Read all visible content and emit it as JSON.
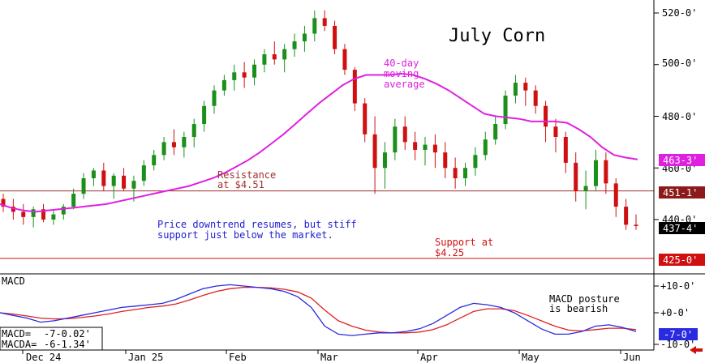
{
  "chart_data": [
    {
      "type": "candlestick",
      "title": "July Corn",
      "x_tick_labels": [
        "Dec 24",
        "Jan 25",
        "Feb",
        "Mar",
        "Apr",
        "May",
        "Jun"
      ],
      "y_tick_labels": [
        "520-0'",
        "500-0'",
        "480-0'",
        "460-0'",
        "440-0'"
      ],
      "ylim": [
        420,
        525
      ],
      "price_labels": {
        "moving_average_value": "463-3'",
        "resistance_value": "451-1'",
        "last_price_value": "437-4'",
        "support_value": "425-0'"
      },
      "levels": {
        "resistance": 451.1,
        "support": 425
      },
      "annotations": {
        "resistance": [
          "Resistance",
          "at $4.51"
        ],
        "support": [
          "Support at",
          "$4.25"
        ],
        "moving_average": [
          "40-day",
          "moving",
          "average"
        ],
        "comment": [
          "Price downtrend resumes, but stiff",
          "support just below the market."
        ]
      },
      "series": [
        {
          "name": "40-day moving average",
          "type": "line",
          "values": [
            446,
            444.5,
            443.5,
            443,
            443.5,
            444,
            444.5,
            445,
            445.5,
            446,
            447,
            448,
            449,
            450,
            451,
            452,
            453,
            454.5,
            456,
            458,
            460.5,
            463,
            466,
            469.5,
            473,
            477,
            481,
            485,
            488.5,
            492,
            494.5,
            496,
            496,
            496,
            496.5,
            496,
            494.5,
            492.5,
            490,
            487,
            484,
            481,
            480,
            479.5,
            479,
            478,
            478,
            478,
            477.5,
            475,
            472,
            468,
            465,
            464,
            463.3
          ]
        },
        {
          "name": "close",
          "type": "ohlc",
          "values": [
            [
              448,
              450,
              443,
              445
            ],
            [
              445,
              448,
              440,
              443
            ],
            [
              443,
              446,
              438,
              441
            ],
            [
              441,
              445,
              437,
              444
            ],
            [
              444,
              446,
              439,
              440
            ],
            [
              440,
              444,
              438,
              442
            ],
            [
              442,
              446,
              440,
              445
            ],
            [
              445,
              452,
              444,
              450
            ],
            [
              450,
              458,
              448,
              456
            ],
            [
              456,
              460,
              453,
              459
            ],
            [
              459,
              462,
              451,
              453
            ],
            [
              453,
              458,
              448,
              457
            ],
            [
              457,
              460,
              451,
              452
            ],
            [
              452,
              457,
              447,
              455
            ],
            [
              455,
              463,
              453,
              461
            ],
            [
              461,
              467,
              459,
              465
            ],
            [
              465,
              472,
              463,
              470
            ],
            [
              470,
              475,
              465,
              468
            ],
            [
              468,
              474,
              464,
              472
            ],
            [
              472,
              479,
              468,
              477
            ],
            [
              477,
              486,
              474,
              484
            ],
            [
              484,
              492,
              481,
              490
            ],
            [
              490,
              496,
              488,
              494
            ],
            [
              494,
              500,
              490,
              497
            ],
            [
              497,
              501,
              491,
              495
            ],
            [
              495,
              502,
              492,
              500
            ],
            [
              500,
              506,
              497,
              504
            ],
            [
              504,
              509,
              500,
              502
            ],
            [
              502,
              508,
              497,
              506
            ],
            [
              506,
              512,
              503,
              509
            ],
            [
              509,
              515,
              505,
              512
            ],
            [
              512,
              521,
              509,
              518
            ],
            [
              518,
              521,
              513,
              515
            ],
            [
              515,
              517,
              504,
              506
            ],
            [
              506,
              508,
              496,
              498
            ],
            [
              498,
              499,
              482,
              485
            ],
            [
              485,
              487,
              470,
              473
            ],
            [
              473,
              480,
              450,
              460
            ],
            [
              460,
              470,
              452,
              466
            ],
            [
              466,
              479,
              463,
              476
            ],
            [
              476,
              480,
              467,
              470
            ],
            [
              470,
              474,
              463,
              467
            ],
            [
              467,
              472,
              461,
              469
            ],
            [
              469,
              473,
              460,
              466
            ],
            [
              466,
              470,
              456,
              460
            ],
            [
              460,
              464,
              452,
              456
            ],
            [
              456,
              462,
              453,
              460
            ],
            [
              460,
              468,
              457,
              465
            ],
            [
              465,
              474,
              463,
              471
            ],
            [
              471,
              480,
              469,
              477
            ],
            [
              477,
              490,
              475,
              488
            ],
            [
              488,
              496,
              485,
              493
            ],
            [
              493,
              495,
              484,
              490
            ],
            [
              490,
              492,
              481,
              484
            ],
            [
              484,
              486,
              470,
              476
            ],
            [
              476,
              479,
              466,
              472
            ],
            [
              472,
              474,
              458,
              462
            ],
            [
              462,
              466,
              447,
              451
            ],
            [
              451,
              459,
              444,
              453
            ],
            [
              453,
              467,
              451,
              463
            ],
            [
              463,
              466,
              450,
              454
            ],
            [
              454,
              456,
              441,
              445
            ],
            [
              445,
              448,
              436,
              438
            ],
            [
              438,
              442,
              436,
              437.5
            ]
          ]
        }
      ]
    },
    {
      "type": "line",
      "title": "MACD",
      "ylim": [
        -10,
        12
      ],
      "y_tick_labels": [
        "+10-0'",
        "+0-0'",
        "-10-0'"
      ],
      "value_label": "-7-0'",
      "readouts": [
        {
          "label": "MACD=",
          "value": "-7-0.02'"
        },
        {
          "label": "MACDA=",
          "value": "-6-1.34'"
        }
      ],
      "annotation": [
        "MACD posture",
        "is bearish"
      ],
      "series": [
        {
          "name": "MACD",
          "type": "line",
          "color": "#2a2ae0",
          "values": [
            0,
            -1,
            -2,
            -3.5,
            -3,
            -2,
            -1,
            0,
            1,
            2,
            2.5,
            3,
            3.5,
            5,
            7,
            9,
            10,
            10.5,
            10,
            9.5,
            9,
            8,
            6,
            2,
            -5,
            -8,
            -8.5,
            -8,
            -7.5,
            -7.5,
            -7,
            -6,
            -4,
            -1,
            2,
            3.5,
            3,
            2,
            0,
            -3,
            -6,
            -8,
            -8,
            -7,
            -5,
            -4.5,
            -5.5,
            -7
          ]
        },
        {
          "name": "MACDA",
          "type": "line",
          "color": "#e02020",
          "values": [
            0,
            -0.5,
            -1.2,
            -2,
            -2.3,
            -2.2,
            -1.8,
            -1.2,
            -0.5,
            0.5,
            1.2,
            2,
            2.5,
            3.3,
            4.8,
            6.5,
            8,
            9,
            9.5,
            9.5,
            9.3,
            8.8,
            7.8,
            5.5,
            1,
            -3,
            -5,
            -6.5,
            -7.2,
            -7.5,
            -7.5,
            -7.2,
            -6.3,
            -4.5,
            -2,
            0.5,
            1.5,
            1.5,
            0.8,
            -1,
            -3,
            -5,
            -6.5,
            -6.8,
            -6.3,
            -5.8,
            -5.8,
            -6.3
          ]
        }
      ]
    }
  ],
  "colors": {
    "up": "#1a8f1a",
    "down": "#d01010",
    "moving_average": "#e020e0",
    "macd": "#2a2ae0",
    "macda": "#e02020",
    "resistance_line": "#a03030",
    "support_line": "#d01010",
    "comment_text": "#2020d0",
    "title_text": "#000000"
  },
  "ui": {
    "back_arrow_icon": "arrow-left-icon"
  }
}
